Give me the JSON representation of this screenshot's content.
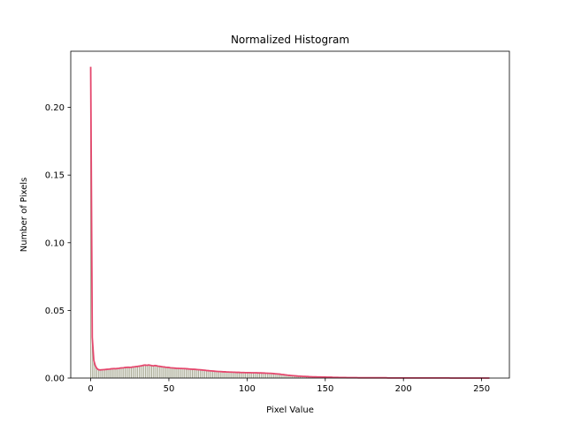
{
  "chart_data": {
    "type": "bar",
    "overlay": "line",
    "title": "Normalized Histogram",
    "xlabel": "Pixel Value",
    "ylabel": "Number of Pixels",
    "bar_color": "#a9ab95",
    "line_color": "#e5486e",
    "xlim": [
      -12.75,
      267.75
    ],
    "ylim": [
      0,
      0.2415
    ],
    "xticks": [
      0,
      50,
      100,
      150,
      200,
      250
    ],
    "yticks": [
      {
        "value": 0,
        "label": "0.00"
      },
      {
        "value": 0.05,
        "label": "0.05"
      },
      {
        "value": 0.1,
        "label": "0.10"
      },
      {
        "value": 0.15,
        "label": "0.15"
      },
      {
        "value": 0.2,
        "label": "0.20"
      }
    ],
    "x": [
      0,
      1,
      2,
      3,
      4,
      5,
      6,
      7,
      8,
      9,
      10,
      11,
      12,
      13,
      14,
      15,
      16,
      17,
      18,
      19,
      20,
      21,
      22,
      23,
      24,
      25,
      26,
      27,
      28,
      29,
      30,
      31,
      32,
      33,
      34,
      35,
      36,
      37,
      38,
      39,
      40,
      41,
      42,
      43,
      44,
      45,
      46,
      47,
      48,
      49,
      50,
      51,
      52,
      53,
      54,
      55,
      56,
      57,
      58,
      59,
      60,
      61,
      62,
      63,
      64,
      65,
      66,
      67,
      68,
      69,
      70,
      71,
      72,
      73,
      74,
      75,
      76,
      77,
      78,
      79,
      80,
      81,
      82,
      83,
      84,
      85,
      86,
      87,
      88,
      89,
      90,
      91,
      92,
      93,
      94,
      95,
      96,
      97,
      98,
      99,
      100,
      101,
      102,
      103,
      104,
      105,
      106,
      107,
      108,
      109,
      110,
      111,
      112,
      113,
      114,
      115,
      116,
      117,
      118,
      119,
      120,
      121,
      122,
      123,
      124,
      125,
      126,
      127,
      128,
      129,
      130,
      131,
      132,
      133,
      134,
      135,
      136,
      137,
      138,
      139,
      140,
      141,
      142,
      143,
      144,
      145,
      146,
      147,
      148,
      149,
      150,
      151,
      152,
      153,
      154,
      155,
      156,
      157,
      158,
      159,
      160,
      161,
      162,
      163,
      164,
      165,
      166,
      167,
      168,
      169,
      170,
      171,
      172,
      173,
      174,
      175,
      176,
      177,
      178,
      179,
      180,
      181,
      182,
      183,
      184,
      185,
      186,
      187,
      188,
      189,
      190,
      191,
      192,
      193,
      194,
      195,
      196,
      197,
      198,
      199,
      200,
      201,
      202,
      203,
      204,
      205,
      206,
      207,
      208,
      209,
      210,
      211,
      212,
      213,
      214,
      215,
      216,
      217,
      218,
      219,
      220,
      221,
      222,
      223,
      224,
      225,
      226,
      227,
      228,
      229,
      230,
      231,
      232,
      233,
      234,
      235,
      236,
      237,
      238,
      239,
      240,
      241,
      242,
      243,
      244,
      245,
      246,
      247,
      248,
      249,
      250,
      251,
      252,
      253,
      254,
      255
    ],
    "values": [
      0.23,
      0.03,
      0.013,
      0.009,
      0.007,
      0.0062,
      0.006,
      0.0061,
      0.0062,
      0.0063,
      0.0064,
      0.0065,
      0.0066,
      0.0068,
      0.0069,
      0.007,
      0.0069,
      0.0071,
      0.0072,
      0.0074,
      0.0075,
      0.0076,
      0.0078,
      0.0079,
      0.008,
      0.0079,
      0.008,
      0.0082,
      0.0083,
      0.0085,
      0.0086,
      0.0088,
      0.009,
      0.0092,
      0.0095,
      0.0096,
      0.0094,
      0.0097,
      0.0095,
      0.0092,
      0.009,
      0.0093,
      0.0091,
      0.0088,
      0.0087,
      0.0085,
      0.0083,
      0.0082,
      0.008,
      0.0079,
      0.0078,
      0.0076,
      0.0075,
      0.0074,
      0.0073,
      0.0072,
      0.0072,
      0.0071,
      0.0071,
      0.007,
      0.007,
      0.0069,
      0.0068,
      0.0067,
      0.0066,
      0.0065,
      0.0065,
      0.0064,
      0.0063,
      0.0062,
      0.0061,
      0.006,
      0.0059,
      0.0058,
      0.0056,
      0.0055,
      0.0054,
      0.0053,
      0.0052,
      0.0051,
      0.005,
      0.0049,
      0.0048,
      0.0048,
      0.0047,
      0.0046,
      0.0046,
      0.0045,
      0.0045,
      0.0044,
      0.0044,
      0.0043,
      0.0043,
      0.0042,
      0.0042,
      0.0042,
      0.0041,
      0.0041,
      0.0041,
      0.004,
      0.004,
      0.004,
      0.004,
      0.0039,
      0.0039,
      0.0039,
      0.0039,
      0.0038,
      0.0038,
      0.0038,
      0.0037,
      0.0037,
      0.0036,
      0.0036,
      0.0035,
      0.0035,
      0.0034,
      0.0033,
      0.0032,
      0.0031,
      0.003,
      0.0029,
      0.0027,
      0.0026,
      0.0024,
      0.0023,
      0.0021,
      0.002,
      0.0019,
      0.0018,
      0.0017,
      0.0016,
      0.0015,
      0.0014,
      0.0014,
      0.0013,
      0.0012,
      0.0012,
      0.0011,
      0.0011,
      0.001,
      0.001,
      0.0009,
      0.0009,
      0.0009,
      0.0008,
      0.0008,
      0.0008,
      0.0007,
      0.0007,
      0.0007,
      0.0006,
      0.0006,
      0.0006,
      0.0006,
      0.0005,
      0.0005,
      0.0005,
      0.0005,
      0.0004,
      0.0004,
      0.0004,
      0.0004,
      0.0004,
      0.0003,
      0.0003,
      0.0003,
      0.0003,
      0.0003,
      0.0003,
      0.0003,
      0.0002,
      0.0002,
      0.0002,
      0.0002,
      0.0002,
      0.0002,
      0.0002,
      0.0002,
      0.0002,
      0.0002,
      0.0002,
      0.0002,
      0.0002,
      0.0002,
      0.0002,
      0.0002,
      0.0002,
      0.0002,
      0.0002,
      0.0001,
      0.0001,
      0.0001,
      0.0001,
      0.0001,
      0.0001,
      0.0001,
      0.0001,
      0.0001,
      0.0001,
      0.0001,
      0.0001,
      0.0001,
      0.0001,
      0.0001,
      0.0001,
      0.0001,
      0.0001,
      0.0001,
      0.0001,
      0.0001,
      0.0001,
      0.0001,
      0.0001,
      0.0001,
      0.0001,
      0.0001,
      0.0001,
      0.0001,
      0.0001,
      0.0001,
      0.0001,
      0.0001,
      0.0001,
      0.0001,
      0.0001,
      0.0001,
      0.0001,
      0.0001,
      0.0001,
      0,
      0,
      0,
      0,
      0,
      0,
      0,
      0,
      0,
      0,
      0,
      0,
      0,
      0,
      0,
      0,
      0,
      0,
      0,
      0,
      0,
      0,
      0,
      0,
      0,
      0
    ]
  }
}
